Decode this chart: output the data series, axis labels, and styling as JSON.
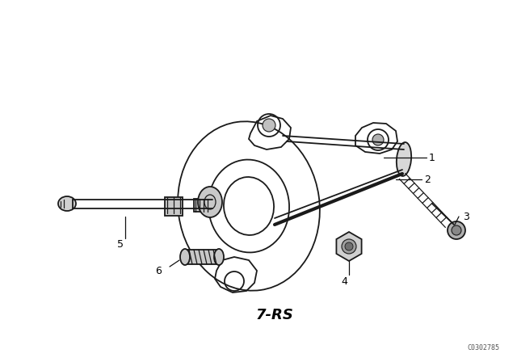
{
  "background_color": "#ffffff",
  "line_color": "#1a1a1a",
  "watermark": "C0302785",
  "label_7rs": "7-RS",
  "fig_width": 6.4,
  "fig_height": 4.48,
  "dpi": 100
}
